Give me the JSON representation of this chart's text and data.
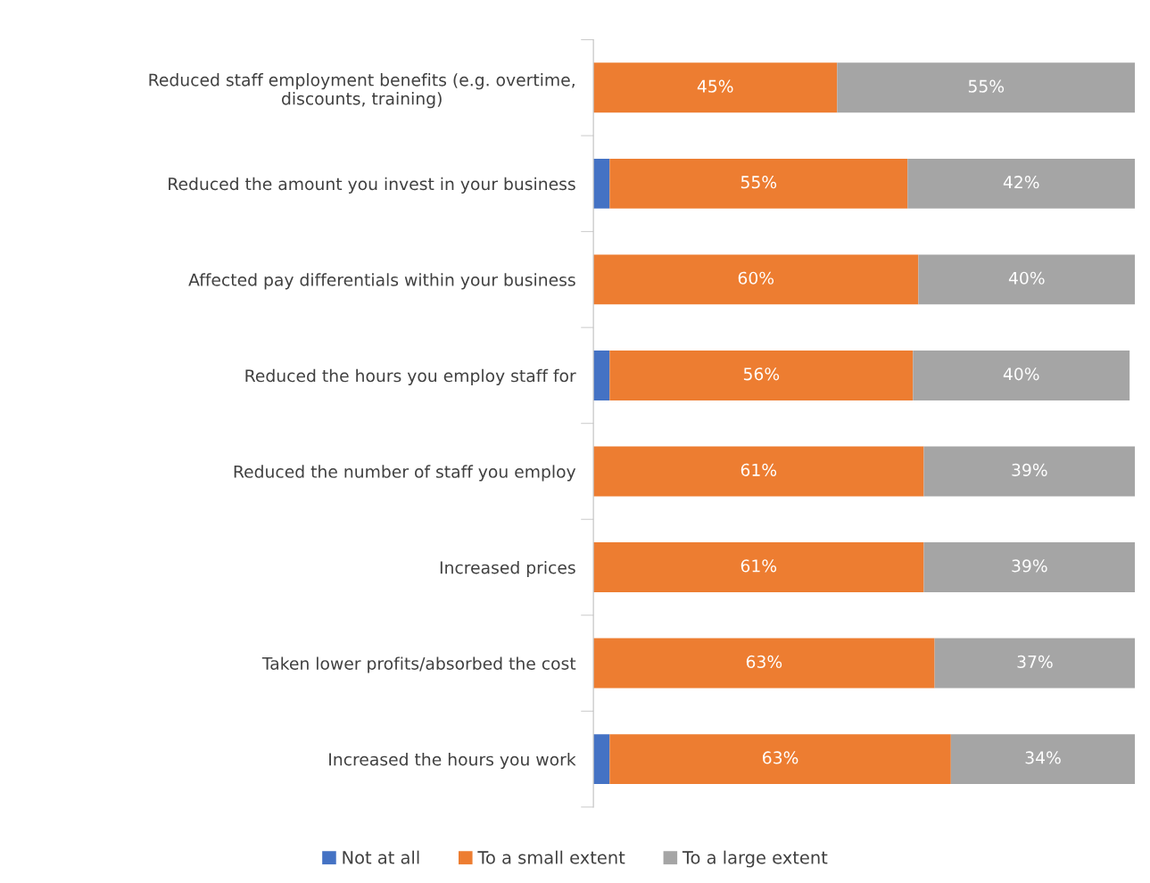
{
  "chart_data": {
    "type": "bar",
    "orientation": "horizontal",
    "stacked": true,
    "categories": [
      "Reduced staff employment benefits (e.g. overtime,\ndiscounts, training)",
      "Reduced the amount you invest in your business",
      "Affected pay differentials within your business",
      "Reduced the hours you employ staff for",
      "Reduced the number of staff you employ",
      "Increased prices",
      "Taken lower profits/absorbed the cost",
      "Increased the hours you work"
    ],
    "series": [
      {
        "name": "Not at all",
        "color": "#4472c4",
        "values": [
          0,
          3,
          0,
          3,
          0,
          0,
          0,
          3
        ],
        "value_labels": [
          null,
          null,
          null,
          null,
          null,
          null,
          null,
          null
        ]
      },
      {
        "name": "To a small extent",
        "color": "#ed7d31",
        "values": [
          45,
          55,
          60,
          56,
          61,
          61,
          63,
          63
        ],
        "value_labels": [
          "45%",
          "55%",
          "60%",
          "56%",
          "61%",
          "61%",
          "63%",
          "63%"
        ]
      },
      {
        "name": "To a large extent",
        "color": "#a5a5a5",
        "values": [
          55,
          42,
          40,
          40,
          39,
          39,
          37,
          34
        ],
        "value_labels": [
          "55%",
          "42%",
          "40%",
          "40%",
          "39%",
          "39%",
          "37%",
          "34%"
        ]
      }
    ],
    "xlim": [
      0,
      100
    ],
    "tick_labels": "y",
    "grid": false,
    "legend": "bottom"
  }
}
